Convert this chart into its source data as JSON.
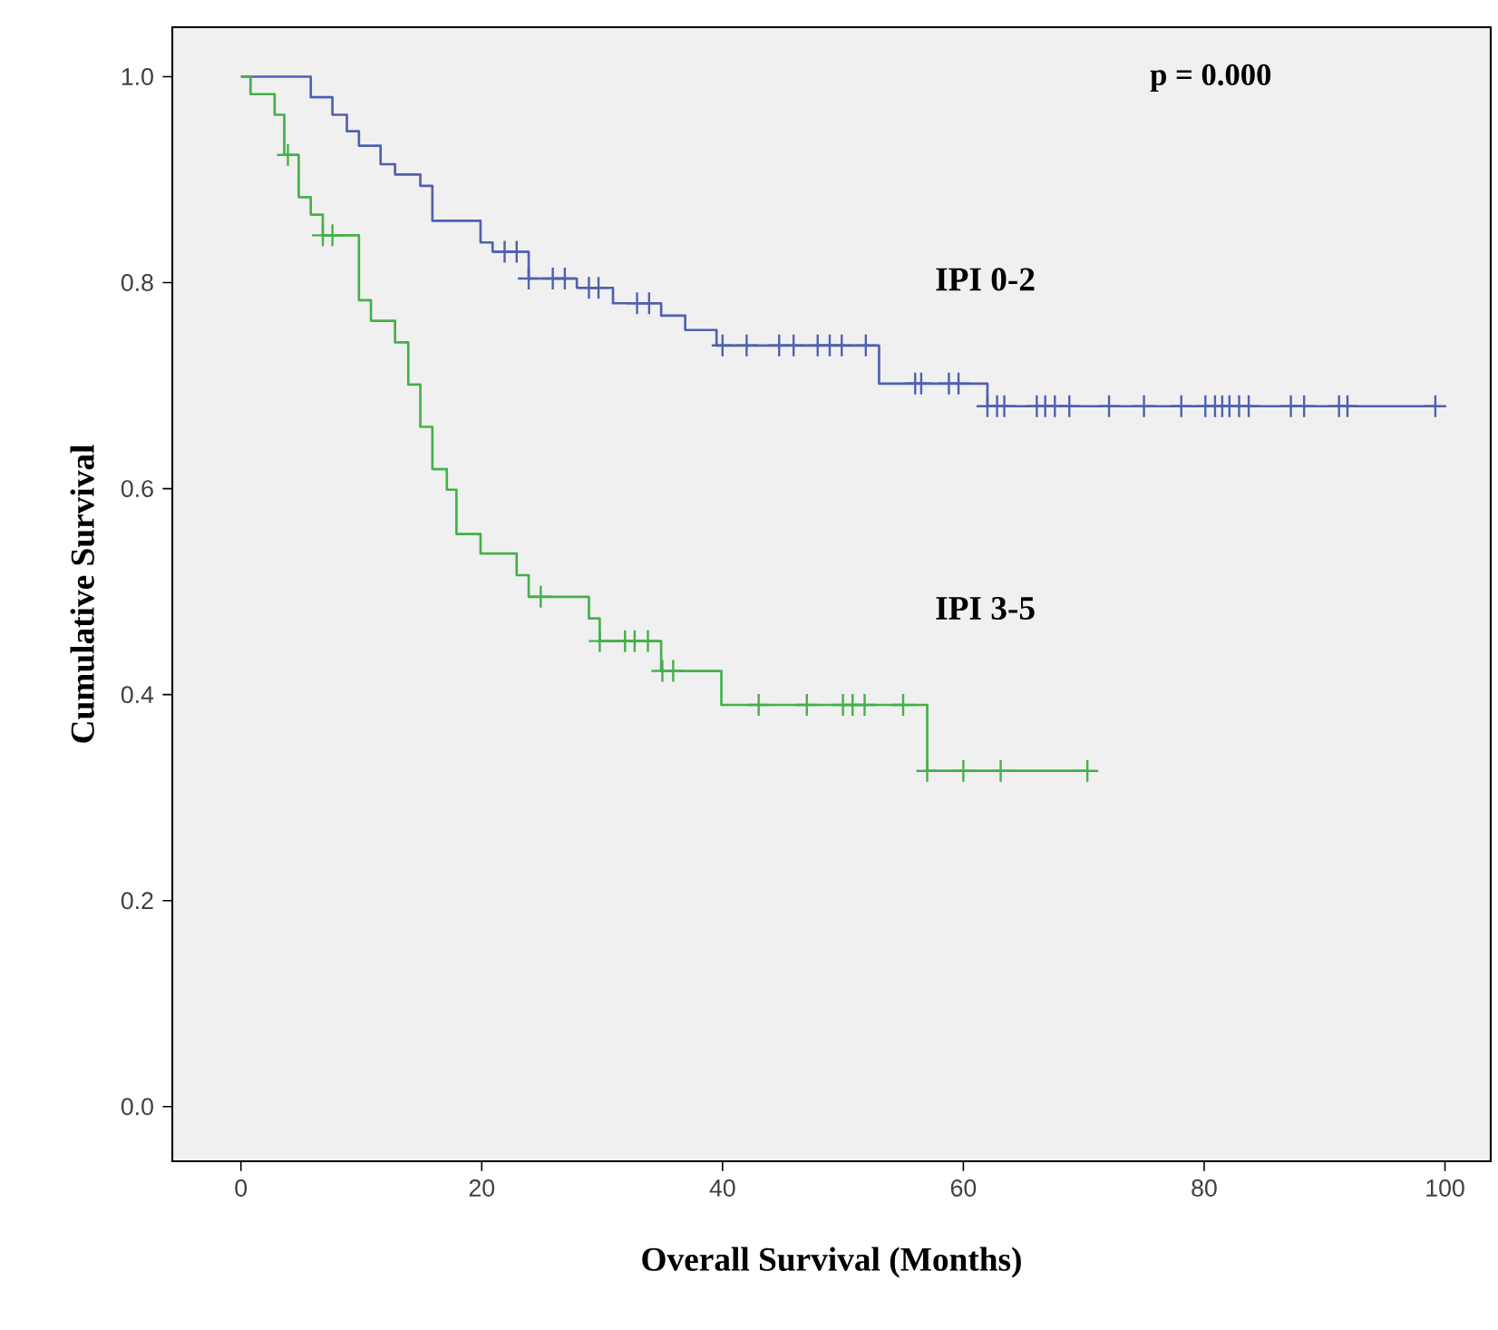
{
  "chart_data": {
    "type": "step",
    "xlabel": "Overall Survival (Months)",
    "ylabel": "Cumulative Survival",
    "xlim": [
      -5.7,
      103.8
    ],
    "ylim": [
      -0.053,
      1.048
    ],
    "xticks": [
      0,
      20,
      40,
      60,
      80,
      100
    ],
    "yticks": [
      {
        "value": 0,
        "label": "0.0"
      },
      {
        "value": 0.2,
        "label": "0.2"
      },
      {
        "value": 0.4,
        "label": "0.4"
      },
      {
        "value": 0.6,
        "label": "0.6"
      },
      {
        "value": 0.8,
        "label": "0.8"
      },
      {
        "value": 1,
        "label": "1.0"
      }
    ],
    "annotations": [
      "p = 0.000"
    ],
    "series": [
      {
        "name": "IPI 0-2",
        "color": "#5060b0",
        "x": [
          0,
          5.8,
          7.6,
          8.8,
          9.8,
          11.6,
          12.8,
          14.9,
          15.9,
          19.9,
          20.9,
          23.9,
          27.9,
          30.9,
          34.9,
          36.9,
          39.5,
          53.0,
          62.0,
          99.2
        ],
        "values": [
          1.0,
          0.98,
          0.963,
          0.947,
          0.933,
          0.915,
          0.905,
          0.894,
          0.86,
          0.839,
          0.83,
          0.804,
          0.795,
          0.78,
          0.768,
          0.754,
          0.739,
          0.702,
          0.68,
          0.68
        ]
      },
      {
        "name": "IPI 3-5",
        "color": "#44b04a",
        "x": [
          0,
          0.8,
          2.8,
          3.6,
          4.8,
          5.8,
          6.8,
          9.8,
          10.8,
          12.8,
          13.9,
          14.9,
          15.9,
          17.1,
          17.9,
          19.9,
          22.9,
          23.9,
          28.9,
          29.8,
          34.9,
          39.9,
          57.0,
          70.3
        ],
        "values": [
          1.0,
          0.983,
          0.963,
          0.924,
          0.883,
          0.866,
          0.846,
          0.783,
          0.763,
          0.742,
          0.701,
          0.66,
          0.619,
          0.599,
          0.556,
          0.537,
          0.516,
          0.495,
          0.474,
          0.452,
          0.423,
          0.39,
          0.326,
          0.326
        ]
      },
      {
        "type": "scatter",
        "marker": "cross",
        "color": "#5060b0",
        "x": [
          21.9,
          22.9,
          23.9,
          25.9,
          26.9,
          28.9,
          29.7,
          32.9,
          33.9,
          40,
          42,
          44.7,
          45.9,
          47.9,
          48.9,
          49.9,
          51.9,
          56.0,
          56.5,
          58.8,
          59.6,
          62.0,
          62.8,
          63.4,
          66.1,
          66.8,
          67.6,
          68.8,
          72.1,
          75.0,
          78.1,
          80.1,
          80.9,
          81.5,
          82.1,
          82.9,
          83.7,
          87.2,
          88.3,
          91.2,
          91.9,
          99.2
        ],
        "values": [
          0.83,
          0.83,
          0.804,
          0.804,
          0.804,
          0.795,
          0.795,
          0.78,
          0.78,
          0.739,
          0.739,
          0.739,
          0.739,
          0.739,
          0.739,
          0.739,
          0.739,
          0.702,
          0.702,
          0.702,
          0.702,
          0.68,
          0.68,
          0.68,
          0.68,
          0.68,
          0.68,
          0.68,
          0.68,
          0.68,
          0.68,
          0.68,
          0.68,
          0.68,
          0.68,
          0.68,
          0.68,
          0.68,
          0.68,
          0.68,
          0.68,
          0.68
        ]
      },
      {
        "type": "scatter",
        "marker": "cross",
        "color": "#44b04a",
        "x": [
          3.9,
          6.8,
          7.6,
          24.9,
          29.8,
          31.9,
          32.7,
          33.8,
          35.0,
          35.9,
          43,
          47,
          50,
          50.8,
          51.8,
          55,
          57.0,
          60,
          63.1,
          70.3
        ],
        "values": [
          0.924,
          0.846,
          0.846,
          0.495,
          0.452,
          0.452,
          0.452,
          0.452,
          0.423,
          0.423,
          0.39,
          0.39,
          0.39,
          0.39,
          0.39,
          0.39,
          0.326,
          0.326,
          0.326,
          0.326
        ]
      }
    ]
  }
}
